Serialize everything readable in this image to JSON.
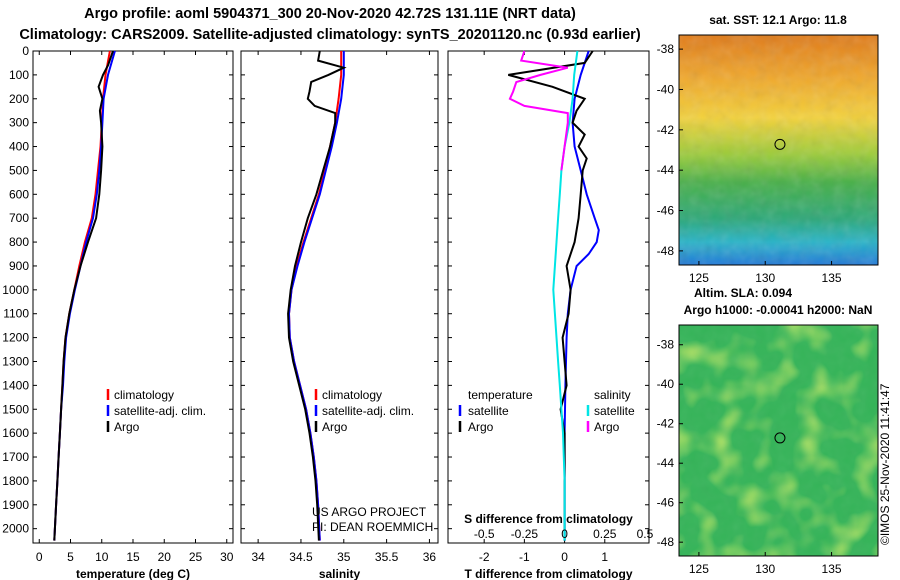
{
  "header": {
    "title_line1": "Argo profile: aoml 5904371_300 20-Nov-2020 42.72S 131.11E (NRT data)",
    "title_line2": "Climatology: CARS2009. Satellite-adjusted climatology: synTS_20201120.nc (0.93d earlier)"
  },
  "credit": {
    "line1": "US ARGO PROJECT",
    "line2": "PI: DEAN ROEMMICH"
  },
  "copyright": "©IMOS 25-Nov-2020 11:41:47",
  "colors": {
    "climatology": "#ff0000",
    "satellite": "#0000ff",
    "argo": "#000000",
    "sat_salinity": "#00e5e5",
    "argo_salinity": "#ff00ff"
  },
  "chart_data": [
    {
      "type": "line",
      "panel": "temperature",
      "xlabel": "temperature (deg C)",
      "ylabel": "",
      "xlim": [
        -1,
        31
      ],
      "ylim": [
        2060,
        0
      ],
      "xticks": [
        0,
        5,
        10,
        15,
        20,
        25,
        30
      ],
      "xtick_labels": [
        "0",
        "5",
        "10",
        "15",
        "20",
        "25",
        "30"
      ],
      "yticks": [
        0,
        100,
        200,
        300,
        400,
        500,
        600,
        700,
        800,
        900,
        1000,
        1100,
        1200,
        1300,
        1400,
        1500,
        1600,
        1700,
        1800,
        1900,
        2000
      ],
      "legend": [
        "climatology",
        "satellite-adj. clim.",
        "Argo"
      ],
      "series": [
        {
          "name": "climatology",
          "color": "#ff0000",
          "depth": [
            0,
            100,
            200,
            300,
            400,
            500,
            600,
            700,
            800,
            900,
            1000,
            1100,
            1200,
            1300,
            1400,
            1500,
            1600,
            1700,
            1800,
            1900,
            2050
          ],
          "values": [
            11.3,
            10.6,
            10.2,
            10.0,
            9.8,
            9.4,
            9.0,
            8.4,
            7.3,
            6.4,
            5.6,
            4.8,
            4.2,
            3.9,
            3.7,
            3.5,
            3.3,
            3.1,
            2.9,
            2.7,
            2.4
          ]
        },
        {
          "name": "satellite-adj. clim.",
          "color": "#0000ff",
          "depth": [
            0,
            100,
            200,
            300,
            400,
            500,
            600,
            700,
            800,
            900,
            1000,
            1100,
            1200,
            1300,
            1400,
            1500,
            1600,
            1700,
            1800,
            1900,
            2050
          ],
          "values": [
            12.1,
            11.0,
            10.3,
            10.1,
            9.9,
            9.6,
            9.2,
            8.6,
            7.5,
            6.6,
            5.7,
            4.9,
            4.3,
            4.0,
            3.8,
            3.5,
            3.3,
            3.1,
            2.9,
            2.7,
            2.4
          ]
        },
        {
          "name": "Argo",
          "color": "#000000",
          "depth": [
            0,
            60,
            100,
            150,
            200,
            250,
            300,
            400,
            500,
            600,
            700,
            800,
            900,
            1000,
            1100,
            1200,
            1300,
            1400,
            1500,
            1600,
            1700,
            1800,
            1900,
            2050
          ],
          "values": [
            11.8,
            11.0,
            10.2,
            9.5,
            10.1,
            9.7,
            9.9,
            10.1,
            9.9,
            9.6,
            9.1,
            7.8,
            6.6,
            5.6,
            4.8,
            4.2,
            3.9,
            3.7,
            3.5,
            3.3,
            3.1,
            2.9,
            2.7,
            2.4
          ]
        }
      ]
    },
    {
      "type": "line",
      "panel": "salinity",
      "xlabel": "salinity",
      "ylabel": "",
      "xlim": [
        33.8,
        36.1
      ],
      "ylim": [
        2060,
        0
      ],
      "xticks": [
        34,
        34.5,
        35,
        35.5,
        36
      ],
      "xtick_labels": [
        "34",
        "34.5",
        "35",
        "35.5",
        "36"
      ],
      "legend": [
        "climatology",
        "satellite-adj. clim.",
        "Argo"
      ],
      "series": [
        {
          "name": "climatology",
          "color": "#ff0000",
          "depth": [
            0,
            100,
            200,
            300,
            400,
            500,
            600,
            700,
            800,
            900,
            1000,
            1100,
            1200,
            1300,
            1400,
            1500,
            1600,
            1700,
            1800,
            1900,
            2050
          ],
          "values": [
            34.97,
            34.97,
            34.94,
            34.9,
            34.84,
            34.78,
            34.71,
            34.62,
            34.53,
            34.45,
            34.39,
            34.36,
            34.37,
            34.42,
            34.49,
            34.56,
            34.61,
            34.65,
            34.68,
            34.7,
            34.72
          ]
        },
        {
          "name": "satellite-adj. clim.",
          "color": "#0000ff",
          "depth": [
            0,
            100,
            200,
            300,
            400,
            500,
            600,
            700,
            800,
            900,
            1000,
            1100,
            1200,
            1300,
            1400,
            1500,
            1600,
            1700,
            1800,
            1900,
            2050
          ],
          "values": [
            35.0,
            35.0,
            34.97,
            34.92,
            34.86,
            34.79,
            34.72,
            34.63,
            34.54,
            34.46,
            34.39,
            34.36,
            34.37,
            34.42,
            34.49,
            34.56,
            34.61,
            34.65,
            34.68,
            34.7,
            34.72
          ]
        },
        {
          "name": "Argo",
          "color": "#000000",
          "depth": [
            0,
            40,
            70,
            100,
            130,
            170,
            200,
            230,
            260,
            300,
            400,
            500,
            600,
            700,
            800,
            900,
            1000,
            1100,
            1200,
            1300,
            1400,
            1500,
            1600,
            1700,
            1800,
            1900,
            2050
          ],
          "values": [
            34.72,
            34.7,
            35.0,
            34.82,
            34.62,
            34.6,
            34.58,
            34.66,
            34.9,
            34.9,
            34.84,
            34.76,
            34.68,
            34.58,
            34.5,
            34.43,
            34.38,
            34.35,
            34.36,
            34.41,
            34.48,
            34.55,
            34.6,
            34.64,
            34.67,
            34.69,
            34.71
          ]
        }
      ]
    },
    {
      "type": "line",
      "panel": "difference",
      "xlabel": "T difference from climatology",
      "top_xlabel": "S difference from climatology",
      "xlim": [
        -2.9,
        2.1
      ],
      "ylim": [
        2060,
        0
      ],
      "xticks": [
        -2,
        -1,
        0,
        1
      ],
      "xtick_labels": [
        "-2",
        "-1",
        "0",
        "1"
      ],
      "top_xticks": [
        -0.5,
        -0.25,
        0,
        0.25,
        0.5
      ],
      "top_xtick_labels": [
        "-0.5",
        "-0.25",
        "0",
        "0.25",
        "0.5"
      ],
      "legend_left_title": "temperature",
      "legend_right_title": "salinity",
      "legend_left": [
        "satellite",
        "Argo"
      ],
      "legend_right": [
        "satellite",
        "Argo"
      ],
      "series": [
        {
          "name": "satellite",
          "quantity": "T",
          "color": "#0000ff",
          "depth": [
            0,
            100,
            200,
            300,
            400,
            500,
            600,
            700,
            750,
            800,
            850,
            900,
            1000,
            1100,
            1200,
            1400,
            1600,
            1800,
            2050
          ],
          "values": [
            0.6,
            0.4,
            0.25,
            0.2,
            0.25,
            0.4,
            0.55,
            0.75,
            0.85,
            0.8,
            0.6,
            0.3,
            0.15,
            0.08,
            0.05,
            0.02,
            0.0,
            0.0,
            0.0
          ]
        },
        {
          "name": "Argo",
          "quantity": "T",
          "color": "#000000",
          "depth": [
            0,
            50,
            100,
            150,
            200,
            250,
            300,
            350,
            400,
            450,
            500,
            600,
            700,
            800,
            900,
            1000,
            1100,
            1200,
            1300,
            1400,
            1500,
            1600,
            1800,
            2050
          ],
          "values": [
            0.7,
            0.5,
            -1.4,
            -0.3,
            0.5,
            0.3,
            0.2,
            0.5,
            0.35,
            0.55,
            0.45,
            0.4,
            0.35,
            0.25,
            0.05,
            0.15,
            0.1,
            -0.05,
            0.0,
            0.05,
            -0.1,
            0.0,
            0.0,
            0.0
          ]
        },
        {
          "name": "satellite",
          "quantity": "S",
          "color": "#00e5e5",
          "depth": [
            0,
            100,
            200,
            300,
            400,
            500,
            600,
            700,
            800,
            900,
            1000,
            1100,
            1200,
            1300,
            1400,
            1500,
            1600,
            1800,
            2050
          ],
          "values": [
            0.08,
            0.06,
            0.05,
            0.03,
            0.0,
            -0.02,
            -0.03,
            -0.04,
            -0.05,
            -0.06,
            -0.07,
            -0.06,
            -0.05,
            -0.04,
            -0.03,
            -0.02,
            -0.01,
            0.0,
            0.0
          ]
        },
        {
          "name": "Argo",
          "quantity": "S",
          "color": "#ff00ff",
          "depth": [
            0,
            40,
            70,
            100,
            130,
            170,
            200,
            230,
            260,
            300,
            400,
            500
          ],
          "values": [
            -0.25,
            -0.27,
            0.02,
            -0.15,
            -0.3,
            -0.32,
            -0.34,
            -0.25,
            0.02,
            0.02,
            0.0,
            -0.02
          ]
        }
      ]
    },
    {
      "type": "heatmap",
      "panel": "sst_map",
      "title": "sat. SST: 12.1  Argo: 11.8",
      "xlim": [
        123.5,
        138.5
      ],
      "ylim": [
        -48.7,
        -37.3
      ],
      "xticks": [
        125,
        130,
        135
      ],
      "yticks": [
        -38,
        -40,
        -42,
        -44,
        -46,
        -48
      ],
      "xtick_labels": [
        "125",
        "130",
        "135"
      ],
      "ytick_labels": [
        "-38",
        "-40",
        "-42",
        "-44",
        "-46",
        "-48"
      ],
      "marker": {
        "lon": 131.11,
        "lat": -42.72
      }
    },
    {
      "type": "heatmap",
      "panel": "sla_map",
      "title": "Altim. SLA: 0.094",
      "subtitle": "Argo h1000: -0.00041  h2000: NaN",
      "xlim": [
        123.5,
        138.5
      ],
      "ylim": [
        -48.7,
        -37.0
      ],
      "xticks": [
        125,
        130,
        135
      ],
      "yticks": [
        -38,
        -40,
        -42,
        -44,
        -46,
        -48
      ],
      "xtick_labels": [
        "125",
        "130",
        "135"
      ],
      "ytick_labels": [
        "-38",
        "-40",
        "-42",
        "-44",
        "-46",
        "-48"
      ],
      "marker": {
        "lon": 131.11,
        "lat": -42.72
      }
    }
  ]
}
